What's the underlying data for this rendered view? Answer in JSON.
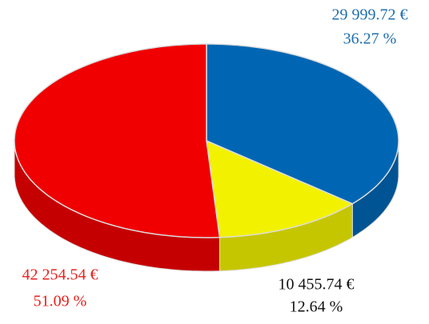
{
  "chart_data": {
    "type": "pie",
    "values": [
      29999.72,
      10455.74,
      42254.54
    ],
    "value_labels": [
      "29 999.72 €",
      "10 455.74 €",
      "42 254.54 €"
    ],
    "percents": [
      36.27,
      12.64,
      51.09
    ],
    "percent_labels": [
      "36.27 %",
      "12.64 %",
      "51.09 %"
    ],
    "colors": [
      "#0066b3",
      "#f2f200",
      "#f00000"
    ],
    "label_colors": [
      "#1f6fb0",
      "#111111",
      "#e8201c"
    ]
  }
}
